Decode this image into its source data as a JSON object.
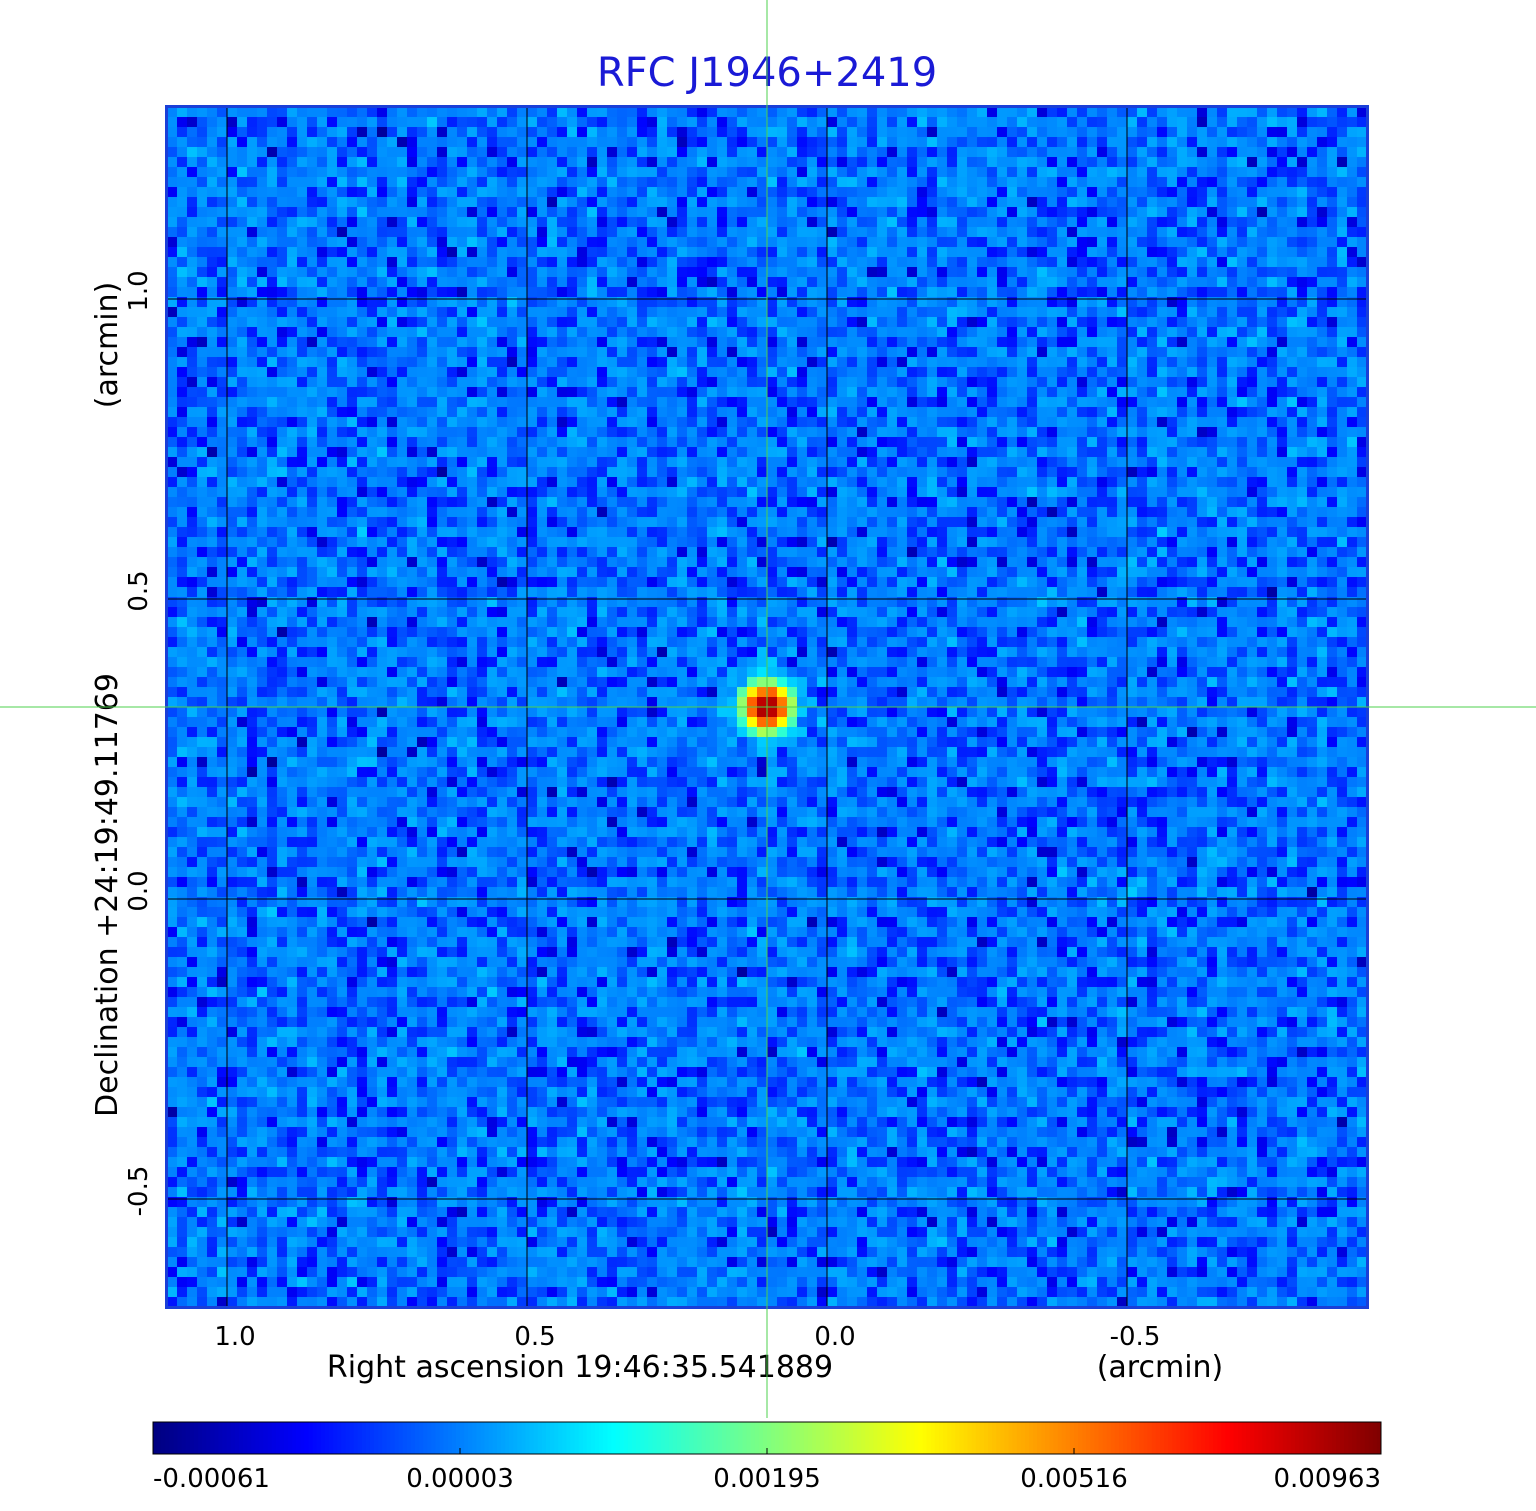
{
  "chart_data": {
    "type": "heatmap",
    "title": "RFC J1946+2419",
    "xlabel": "Right ascension  19:46:35.541889",
    "xunit": "(arcmin)",
    "ylabel": "Declination  +24:19:49.11769",
    "yunit": "(arcmin)",
    "xlim": [
      1.1,
      -0.9
    ],
    "ylim": [
      -0.68,
      1.32
    ],
    "grid": true,
    "x_ticks": [
      {
        "value": 1.0,
        "label": "1.0"
      },
      {
        "value": 0.5,
        "label": "0.5"
      },
      {
        "value": 0.0,
        "label": "0.0"
      },
      {
        "value": -0.5,
        "label": "-0.5"
      }
    ],
    "y_ticks": [
      {
        "value": 1.0,
        "label": "1.0"
      },
      {
        "value": 0.5,
        "label": "0.5"
      },
      {
        "value": 0.0,
        "label": "0.0"
      },
      {
        "value": -0.5,
        "label": "-0.5"
      }
    ],
    "crosshair": {
      "x": 0.1,
      "y": 0.32
    },
    "sources": [
      {
        "x": 0.1,
        "y": 0.32,
        "peak": 0.00963,
        "width_arcmin": 0.025
      }
    ],
    "noise": {
      "mean": 3e-05,
      "min": -0.00061
    },
    "pixels_per_side": 120,
    "colorbar": {
      "colormap": "jet",
      "ticks": [
        "-0.00061",
        "0.00003",
        "0.00195",
        "0.00516",
        "0.00963"
      ]
    },
    "colors": {
      "title": "#1a1ad6",
      "frame": "#1a3fd8",
      "grid": "#000000",
      "crosshair": "#4cd04c"
    }
  }
}
